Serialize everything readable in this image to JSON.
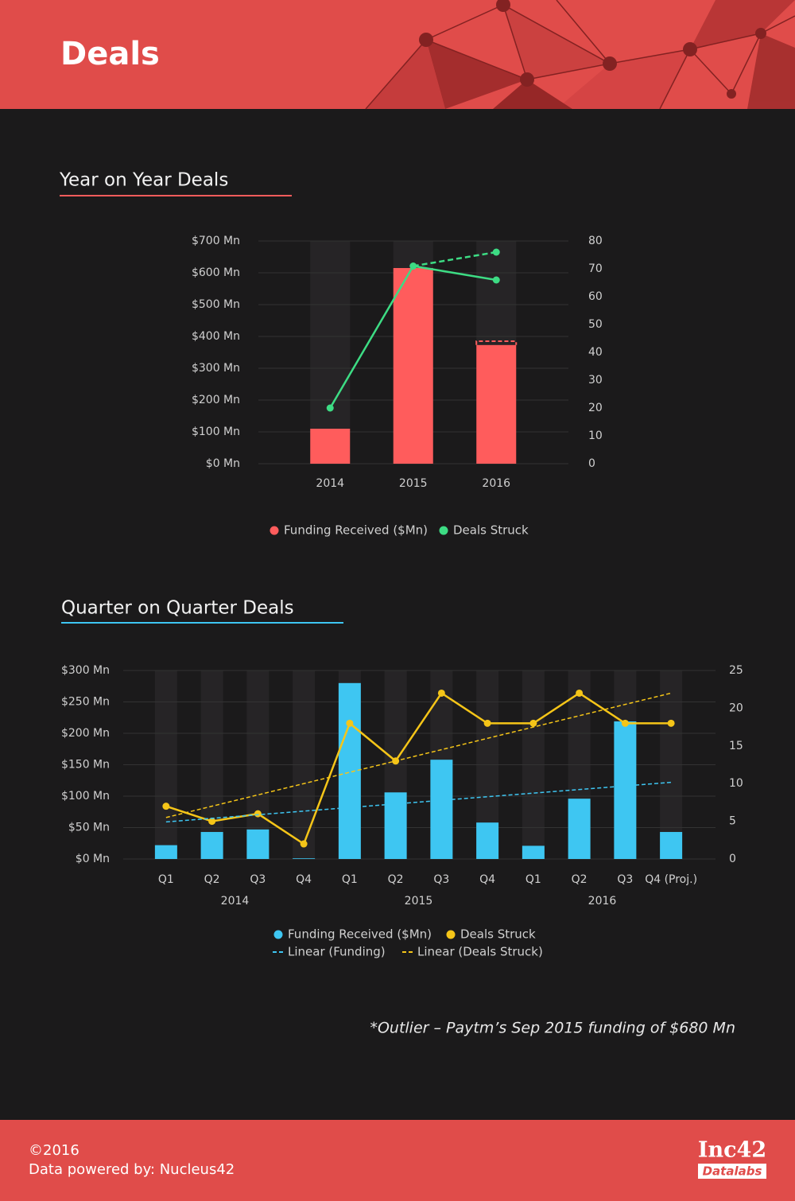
{
  "header": {
    "title": "Deals"
  },
  "chart_data": [
    {
      "type": "bar",
      "title": "Year on Year Deals",
      "categories": [
        "2014",
        "2015",
        "2016"
      ],
      "series": [
        {
          "name": "Funding Received ($Mn)",
          "type": "bar",
          "color": "#ff5c5c",
          "values": [
            110,
            615,
            373
          ],
          "projected_values": [
            null,
            null,
            385
          ]
        },
        {
          "name": "Deals Struck",
          "type": "line",
          "axis": "y2",
          "color": "#3ddc84",
          "values": [
            20,
            71,
            66
          ],
          "projected_values": [
            null,
            null,
            76
          ]
        }
      ],
      "ylim": [
        0,
        700
      ],
      "yticks": [
        {
          "value": 0,
          "label": "$0 Mn"
        },
        {
          "value": 100,
          "label": "$100 Mn"
        },
        {
          "value": 200,
          "label": "$200 Mn"
        },
        {
          "value": 300,
          "label": "$300 Mn"
        },
        {
          "value": 400,
          "label": "$400 Mn"
        },
        {
          "value": 500,
          "label": "$500 Mn"
        },
        {
          "value": 600,
          "label": "$600 Mn"
        },
        {
          "value": 700,
          "label": "$700 Mn"
        }
      ],
      "y2lim": [
        0,
        80
      ],
      "y2ticks": [
        0,
        10,
        20,
        30,
        40,
        50,
        60,
        70,
        80
      ],
      "title_color": "#ff5c5c"
    },
    {
      "type": "bar",
      "title": "Quarter on Quarter Deals",
      "categories": [
        "Q1",
        "Q2",
        "Q3",
        "Q4",
        "Q1",
        "Q2",
        "Q3",
        "Q4",
        "Q1",
        "Q2",
        "Q3",
        "Q4 (Proj.)"
      ],
      "groups": [
        {
          "name": "2014",
          "size": 4
        },
        {
          "name": "2015",
          "size": 4
        },
        {
          "name": "2016",
          "size": 4
        }
      ],
      "series": [
        {
          "name": "Funding Received ($Mn)",
          "type": "bar",
          "color": "#3ec6f2",
          "values": [
            22,
            43,
            47,
            1,
            280,
            106,
            158,
            58,
            21,
            96,
            219,
            43
          ]
        },
        {
          "name": "Deals Struck",
          "type": "line",
          "axis": "y2",
          "color": "#f5c518",
          "values": [
            7,
            5,
            6,
            2,
            18,
            13,
            22,
            18,
            18,
            22,
            18,
            18
          ]
        },
        {
          "name": "Linear (Funding)",
          "type": "trend",
          "color": "#3ec6f2",
          "start": 59,
          "end": 122
        },
        {
          "name": "Linear (Deals Struck)",
          "type": "trend",
          "axis": "y2",
          "color": "#f5c518",
          "start": 5.5,
          "end": 22
        }
      ],
      "ylim": [
        0,
        300
      ],
      "yticks": [
        {
          "value": 0,
          "label": "$0 Mn"
        },
        {
          "value": 50,
          "label": "$50 Mn"
        },
        {
          "value": 100,
          "label": "$100 Mn"
        },
        {
          "value": 150,
          "label": "$150 Mn"
        },
        {
          "value": 200,
          "label": "$200 Mn"
        },
        {
          "value": 250,
          "label": "$250 Mn"
        },
        {
          "value": 300,
          "label": "$300 Mn"
        }
      ],
      "y2lim": [
        0,
        25
      ],
      "y2ticks": [
        0,
        5,
        10,
        15,
        20,
        25
      ],
      "title_color": "#3ec6f2"
    }
  ],
  "note": "*Outlier – Paytm’s Sep 2015 funding of $680 Mn",
  "footer": {
    "copyright": "©2016",
    "source": "Data powered by: Nucleus42",
    "logo": "Inc42",
    "logo_sub": "Datalabs"
  }
}
